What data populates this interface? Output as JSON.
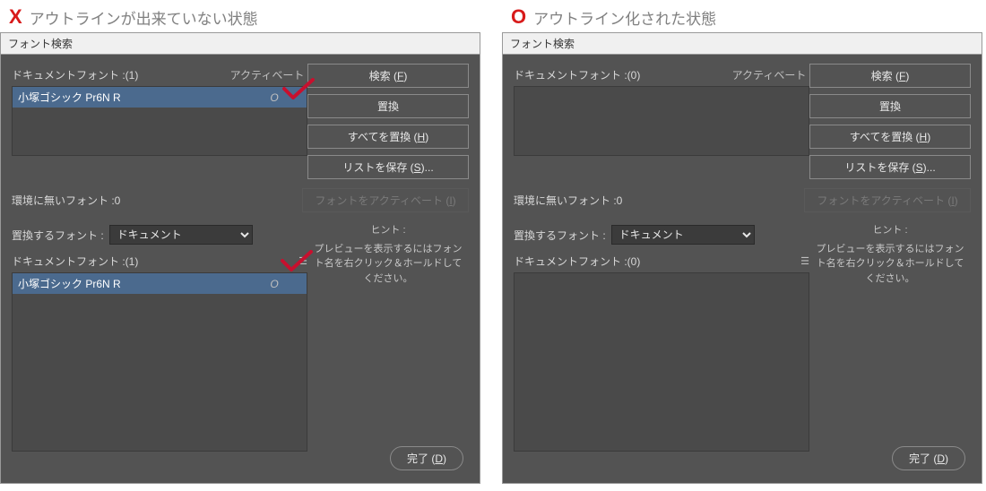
{
  "colors": {
    "window_bg": "#535353",
    "titlebar_bg": "#f0f0f0",
    "listbox_bg": "#4a4a4a",
    "selected_bg": "#4b6a8e",
    "text": "#d8d8d8",
    "caption_text": "#808080",
    "checkmark": "#c8102e",
    "mark_red": "#d81b1b"
  },
  "left": {
    "caption_mark": "X",
    "caption_text": "アウトラインが出来ていない状態",
    "title": "フォント検索",
    "doc_fonts_label": "ドキュメントフォント :",
    "doc_fonts_count": "(1)",
    "activate_header": "アクティベート",
    "fonts": [
      {
        "name": "小塚ゴシック Pr6N R",
        "kind": "O",
        "selected": true
      }
    ],
    "missing_label": "環境に無いフォント :",
    "missing_count": "0",
    "replace_label": "置換するフォント :",
    "replace_selected": "ドキュメント",
    "replace_options": [
      "ドキュメント"
    ],
    "lower_label": "ドキュメントフォント :",
    "lower_count": "(1)",
    "lower_fonts": [
      {
        "name": "小塚ゴシック Pr6N R",
        "kind": "O",
        "selected": true
      }
    ],
    "buttons": {
      "find": {
        "text": "検索 (",
        "accel": "F",
        "tail": ")"
      },
      "change": "置換",
      "change_all": {
        "text": "すべてを置換 (",
        "accel": "H",
        "tail": ")"
      },
      "save_list": {
        "text": "リストを保存 (",
        "accel": "S",
        "tail": ")..."
      },
      "activate_font": {
        "text": "フォントをアクティベート (",
        "accel": "I",
        "tail": ")"
      },
      "done": {
        "text": "完了 (",
        "accel": "D",
        "tail": ")"
      }
    },
    "hint_title": "ヒント :",
    "hint_body": "プレビューを表示するにはフォント名を右クリック＆ホールドしてください。"
  },
  "right": {
    "caption_mark": "O",
    "caption_text": "アウトライン化された状態",
    "title": "フォント検索",
    "doc_fonts_label": "ドキュメントフォント :",
    "doc_fonts_count": "(0)",
    "activate_header": "アクティベート",
    "fonts": [],
    "missing_label": "環境に無いフォント :",
    "missing_count": "0",
    "replace_label": "置換するフォント :",
    "replace_selected": "ドキュメント",
    "replace_options": [
      "ドキュメント"
    ],
    "lower_label": "ドキュメントフォント :",
    "lower_count": "(0)",
    "lower_fonts": [],
    "buttons": {
      "find": {
        "text": "検索 (",
        "accel": "F",
        "tail": ")"
      },
      "change": "置換",
      "change_all": {
        "text": "すべてを置換 (",
        "accel": "H",
        "tail": ")"
      },
      "save_list": {
        "text": "リストを保存 (",
        "accel": "S",
        "tail": ")..."
      },
      "activate_font": {
        "text": "フォントをアクティベート (",
        "accel": "I",
        "tail": ")"
      },
      "done": {
        "text": "完了 (",
        "accel": "D",
        "tail": ")"
      }
    },
    "hint_title": "ヒント :",
    "hint_body": "プレビューを表示するにはフォント名を右クリック＆ホールドしてください。"
  }
}
